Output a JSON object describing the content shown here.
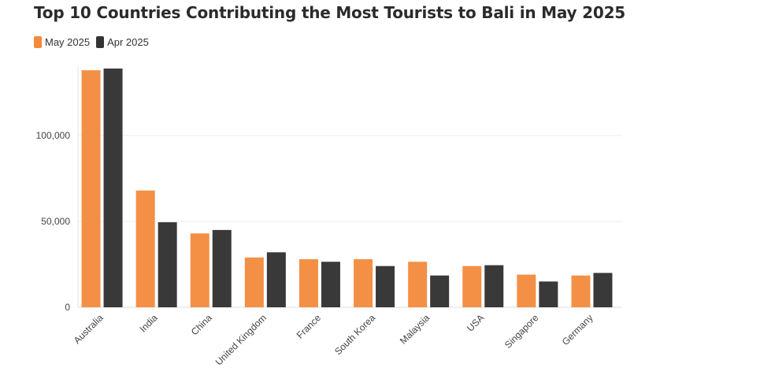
{
  "title": "Top 10 Countries Contributing the Most Tourists to Bali in May 2025",
  "legend": {
    "items": [
      {
        "label": "May 2025",
        "color": "#f28a3c"
      },
      {
        "label": "Apr 2025",
        "color": "#333333"
      }
    ]
  },
  "chart_data": {
    "type": "bar",
    "title": "Top 10 Countries Contributing the Most Tourists to Bali in May 2025",
    "xlabel": "",
    "ylabel": "",
    "categories": [
      "Australia",
      "India",
      "China",
      "United Kingdom",
      "France",
      "South Korea",
      "Malaysia",
      "USA",
      "Singapore",
      "Germany"
    ],
    "series": [
      {
        "name": "May 2025",
        "color": "#f28a3c",
        "values": [
          138000,
          68000,
          43000,
          29000,
          28000,
          28000,
          26500,
          24000,
          19000,
          18500
        ]
      },
      {
        "name": "Apr 2025",
        "color": "#333333",
        "values": [
          139000,
          49500,
          45000,
          32000,
          26500,
          24000,
          18500,
          24500,
          15000,
          20000
        ]
      }
    ],
    "ylim": [
      0,
      140000
    ],
    "yticks": [
      0,
      50000,
      100000
    ],
    "ytick_labels": [
      "0",
      "50,000",
      "100,000"
    ],
    "grid": true,
    "legend_position": "top-left"
  }
}
